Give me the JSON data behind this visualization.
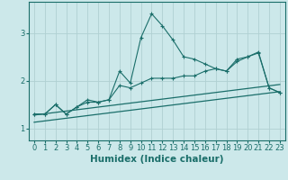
{
  "xlabel": "Humidex (Indice chaleur)",
  "background_color": "#cce8ea",
  "grid_color": "#b0d0d2",
  "line_color": "#1a6e6a",
  "x_ticks": [
    0,
    1,
    2,
    3,
    4,
    5,
    6,
    7,
    8,
    9,
    10,
    11,
    12,
    13,
    14,
    15,
    16,
    17,
    18,
    19,
    20,
    21,
    22,
    23
  ],
  "ylim": [
    0.75,
    3.65
  ],
  "xlim": [
    -0.5,
    23.5
  ],
  "curve1_x": [
    0,
    1,
    2,
    3,
    4,
    5,
    6,
    7,
    8,
    9,
    10,
    11,
    12,
    13,
    14,
    15,
    16,
    17,
    18,
    19,
    20,
    21,
    22,
    23
  ],
  "curve1_y": [
    1.3,
    1.3,
    1.5,
    1.3,
    1.45,
    1.6,
    1.55,
    1.6,
    2.2,
    1.95,
    2.9,
    3.4,
    3.15,
    2.85,
    2.5,
    2.45,
    2.35,
    2.25,
    2.2,
    2.45,
    2.5,
    2.6,
    1.85,
    1.75
  ],
  "curve2_x": [
    0,
    1,
    2,
    3,
    4,
    5,
    6,
    7,
    8,
    9,
    10,
    11,
    12,
    13,
    14,
    15,
    16,
    17,
    18,
    19,
    20,
    21,
    22,
    23
  ],
  "curve2_y": [
    1.3,
    1.3,
    1.5,
    1.3,
    1.45,
    1.55,
    1.55,
    1.6,
    1.9,
    1.85,
    1.95,
    2.05,
    2.05,
    2.05,
    2.1,
    2.1,
    2.2,
    2.25,
    2.2,
    2.4,
    2.5,
    2.58,
    1.85,
    1.75
  ],
  "line1_x": [
    0,
    23
  ],
  "line1_y": [
    1.28,
    1.92
  ],
  "line2_x": [
    0,
    23
  ],
  "line2_y": [
    1.13,
    1.77
  ],
  "yticks": [
    1,
    2,
    3
  ],
  "axis_fontsize": 6.5,
  "tick_fontsize": 6.0,
  "xlabel_fontsize": 7.5
}
